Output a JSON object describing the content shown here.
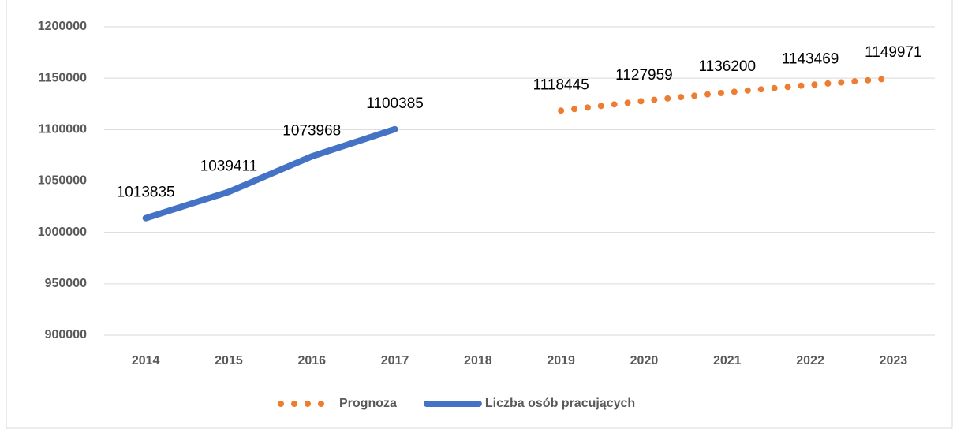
{
  "chart_data": {
    "type": "line",
    "categories": [
      "2014",
      "2015",
      "2016",
      "2017",
      "2018",
      "2019",
      "2020",
      "2021",
      "2022",
      "2023"
    ],
    "series": [
      {
        "name": "Prognoza",
        "color": "#ed7d31",
        "style": "dotted",
        "values": [
          null,
          null,
          null,
          null,
          null,
          1118445,
          1127959,
          1136200,
          1143469,
          1149971
        ]
      },
      {
        "name": "Liczba osób pracujących",
        "color": "#4472c4",
        "style": "solid",
        "values": [
          1013835,
          1039411,
          1073968,
          1100385,
          null,
          null,
          null,
          null,
          null,
          null
        ]
      }
    ],
    "ylim": [
      900000,
      1200000
    ],
    "yticks": [
      900000,
      950000,
      1000000,
      1050000,
      1100000,
      1150000,
      1200000
    ],
    "grid": true,
    "legend": "bottom",
    "data_labels": true
  }
}
